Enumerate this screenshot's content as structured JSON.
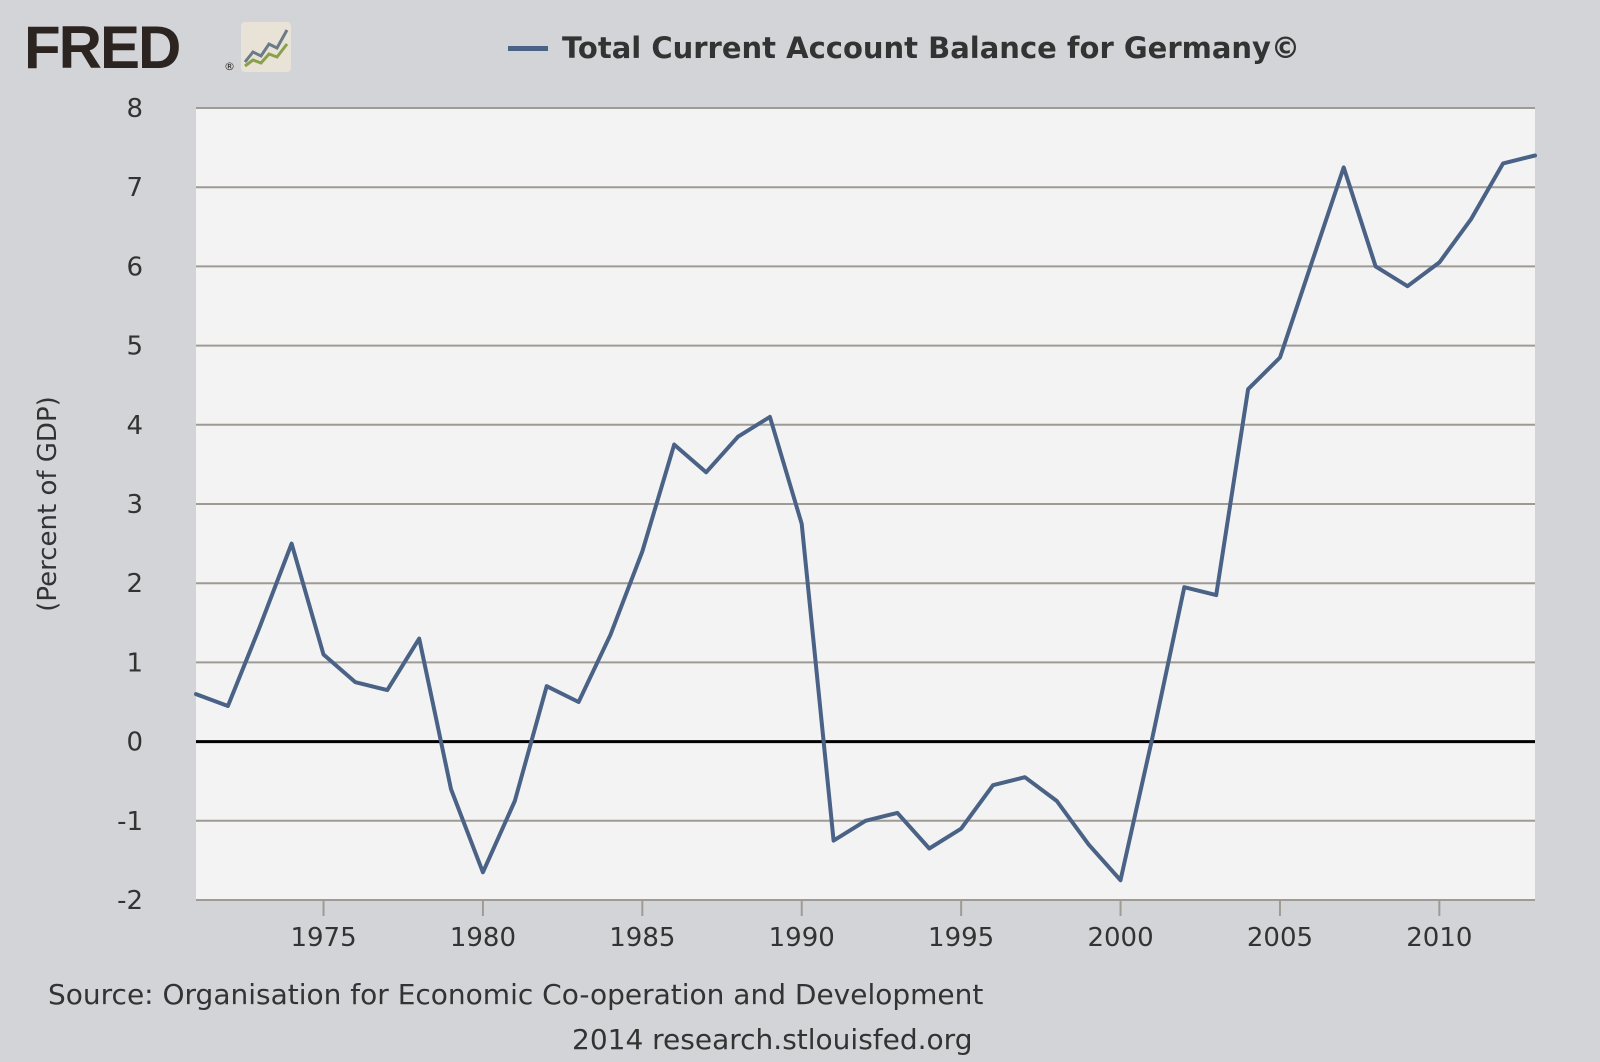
{
  "logo": {
    "text": "FRED",
    "reg_mark": "®",
    "icon": "trend-line-icon"
  },
  "legend": {
    "label": "Total Current Account Balance for Germany©",
    "color": "#4a6285"
  },
  "source": "Source: Organisation for Economic Co-operation and Development",
  "credit": "2014 research.stlouisfed.org",
  "chart_data": {
    "type": "line",
    "title": "Total Current Account Balance for Germany©",
    "ylabel": "(Percent of GDP)",
    "xlabel": "",
    "xlim": [
      1971,
      2013
    ],
    "ylim": [
      -2,
      8
    ],
    "yticks": [
      "8",
      "7",
      "6",
      "5",
      "4",
      "3",
      "2",
      "1",
      "0",
      "-1",
      "-2"
    ],
    "xticks": [
      "1975",
      "1980",
      "1985",
      "1990",
      "1995",
      "2000",
      "2005",
      "2010"
    ],
    "grid": true,
    "zero_line": true,
    "series": [
      {
        "name": "Total Current Account Balance for Germany©",
        "color": "#4a6285",
        "x": [
          1971,
          1972,
          1973,
          1974,
          1975,
          1976,
          1977,
          1978,
          1979,
          1980,
          1981,
          1982,
          1983,
          1984,
          1985,
          1986,
          1987,
          1988,
          1989,
          1990,
          1991,
          1992,
          1993,
          1994,
          1995,
          1996,
          1997,
          1998,
          1999,
          2000,
          2001,
          2002,
          2003,
          2004,
          2005,
          2006,
          2007,
          2008,
          2009,
          2010,
          2011,
          2012,
          2013
        ],
        "values": [
          0.6,
          0.45,
          1.45,
          2.5,
          1.1,
          0.75,
          0.65,
          1.3,
          -0.6,
          -1.65,
          -0.75,
          0.7,
          0.5,
          1.35,
          2.4,
          3.75,
          3.4,
          3.85,
          4.1,
          2.75,
          -1.25,
          -1.0,
          -0.9,
          -1.35,
          -1.1,
          -0.55,
          -0.45,
          -0.75,
          -1.3,
          -1.75,
          0.05,
          1.95,
          1.85,
          4.45,
          4.85,
          6.05,
          7.25,
          6.0,
          5.75,
          6.05,
          6.6,
          7.3,
          7.4
        ]
      }
    ]
  }
}
